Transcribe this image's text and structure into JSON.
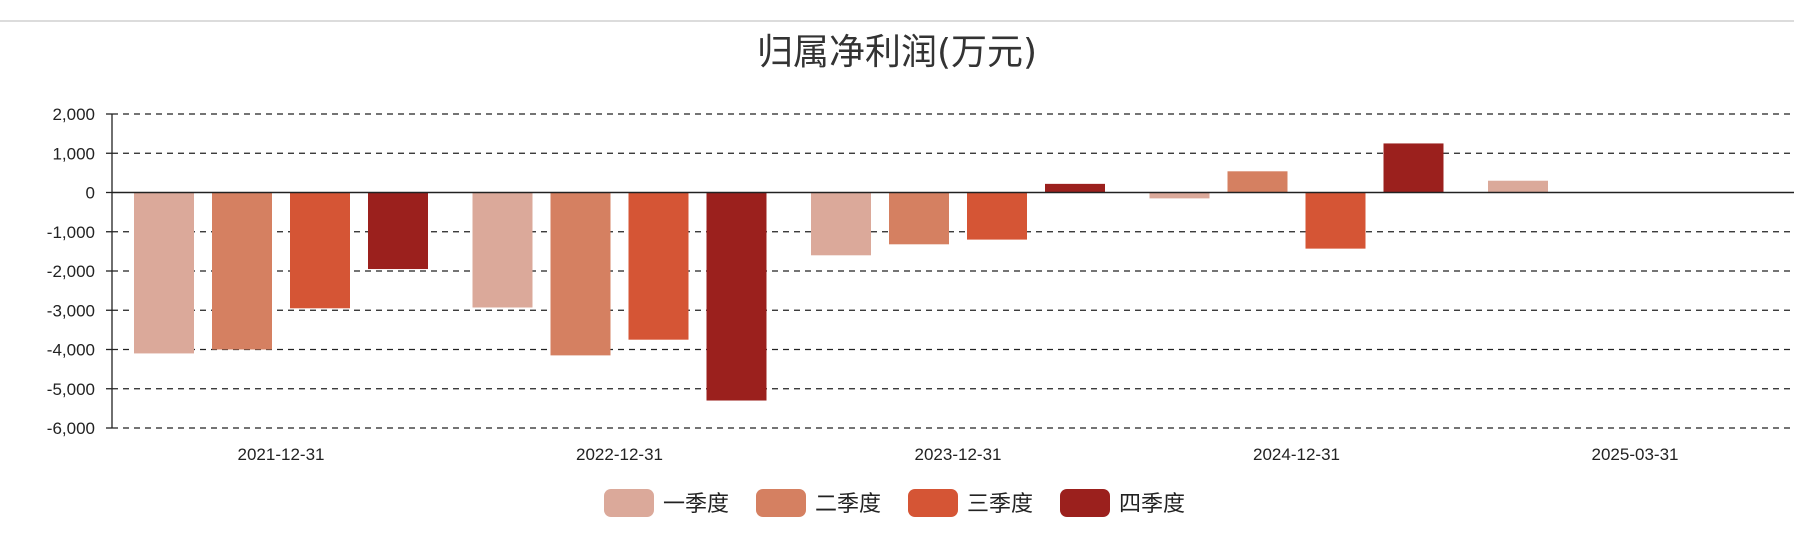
{
  "chart_data": {
    "type": "bar",
    "title": "归属净利润(万元)",
    "xlabel": "",
    "ylabel": "",
    "categories": [
      "2021-12-31",
      "2022-12-31",
      "2023-12-31",
      "2024-12-31",
      "2025-03-31"
    ],
    "series": [
      {
        "name": "一季度",
        "color": "#dba99a",
        "values": [
          -4100,
          -2930,
          -1600,
          -150,
          300
        ]
      },
      {
        "name": "二季度",
        "color": "#d58061",
        "values": [
          -4000,
          -4150,
          -1320,
          540,
          null
        ]
      },
      {
        "name": "三季度",
        "color": "#d55535",
        "values": [
          -2950,
          -3750,
          -1200,
          -1430,
          null
        ]
      },
      {
        "name": "四季度",
        "color": "#9b201d",
        "values": [
          -1950,
          -5300,
          220,
          1250,
          null
        ]
      }
    ],
    "ylim": [
      -6000,
      2000
    ],
    "yticks": [
      2000,
      1000,
      0,
      -1000,
      -2000,
      -3000,
      -4000,
      -5000,
      -6000
    ],
    "ytick_labels": [
      "2,000",
      "1,000",
      "0",
      "-1,000",
      "-2,000",
      "-3,000",
      "-4,000",
      "-5,000",
      "-6,000"
    ],
    "grid": true,
    "legend_position": "bottom-center"
  }
}
